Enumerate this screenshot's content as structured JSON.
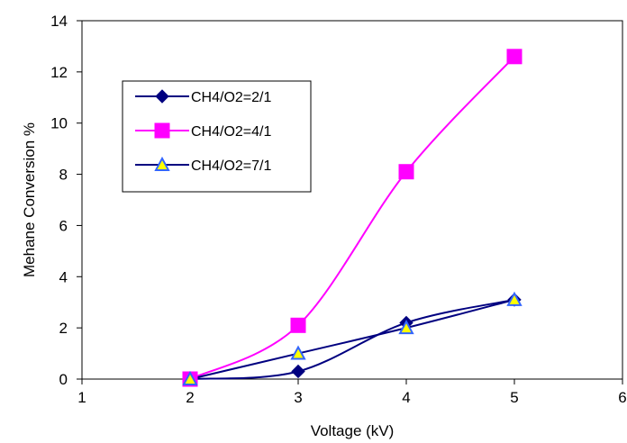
{
  "chart_data": {
    "type": "line",
    "xlabel": "Voltage (kV)",
    "ylabel": "Mehane Conversion %",
    "xlim": [
      1,
      6
    ],
    "ylim": [
      0,
      14
    ],
    "x_ticks": [
      "1",
      "2",
      "3",
      "4",
      "5",
      "6"
    ],
    "y_ticks": [
      "0",
      "2",
      "4",
      "6",
      "8",
      "10",
      "12",
      "14"
    ],
    "grid": false,
    "legend_position": "top-left",
    "series": [
      {
        "name": "CH4/O2=2/1",
        "marker": "diamond",
        "color": "#000080",
        "marker_color": "#000080",
        "marker_edge": "#000080",
        "x": [
          2,
          3,
          4,
          5
        ],
        "y": [
          0,
          0.3,
          2.2,
          3.1
        ]
      },
      {
        "name": "CH4/O2=4/1",
        "marker": "square",
        "color": "#ff00ff",
        "marker_color": "#ff00ff",
        "marker_edge": "#ff00ff",
        "x": [
          2,
          3,
          4,
          5
        ],
        "y": [
          0,
          2.1,
          8.1,
          12.6
        ]
      },
      {
        "name": "CH4/O2=7/1",
        "marker": "triangle",
        "color": "#000080",
        "marker_color": "#ffff00",
        "marker_edge": "#3366ff",
        "x": [
          2,
          3,
          4,
          5
        ],
        "y": [
          0,
          1,
          2,
          3.1
        ]
      }
    ]
  }
}
